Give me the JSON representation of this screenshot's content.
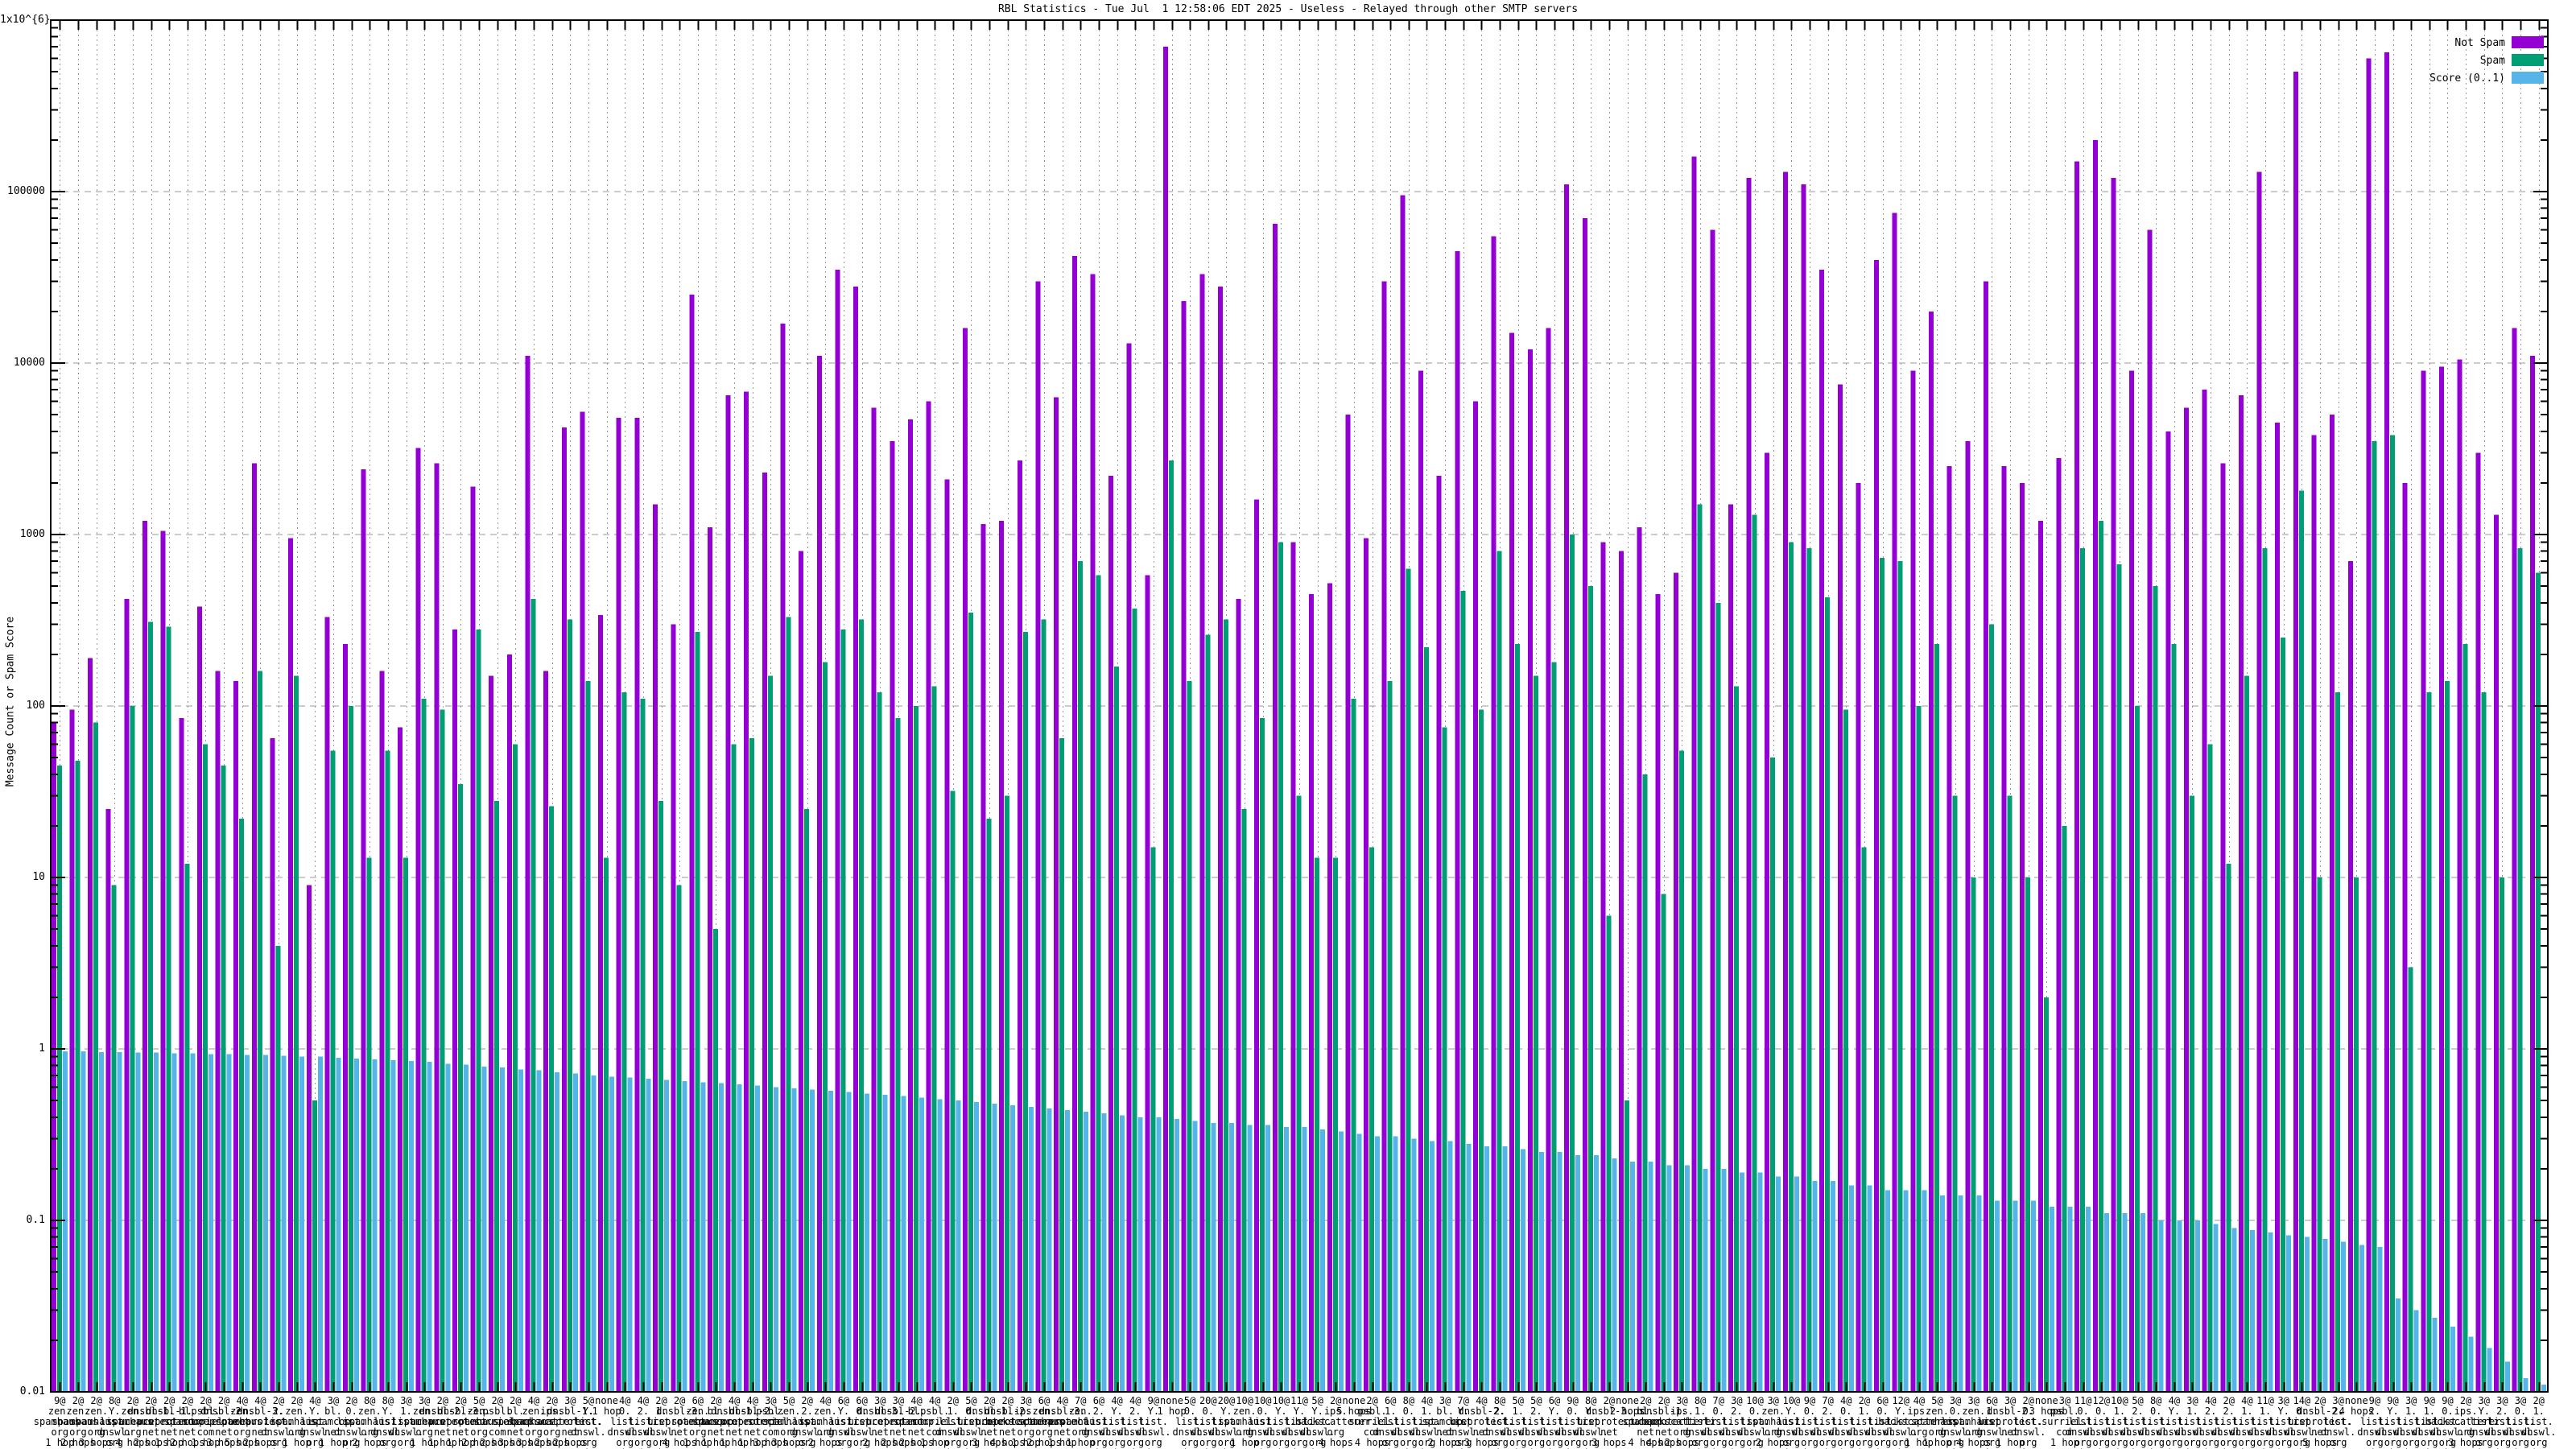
{
  "title": "RBL Statistics - Tue Jul  1 12:58:06 EDT 2025 - Useless - Relayed through other SMTP servers",
  "y_axis": {
    "label": "Message Count or Spam Score",
    "ticks": [
      {
        "text": "1x10^{6}",
        "value": 1000000
      },
      {
        "text": "100000",
        "value": 100000
      },
      {
        "text": "10000",
        "value": 10000
      },
      {
        "text": "1000",
        "value": 1000
      },
      {
        "text": "100",
        "value": 100
      },
      {
        "text": "10",
        "value": 10
      },
      {
        "text": "1",
        "value": 1
      },
      {
        "text": "0.1",
        "value": 0.1
      },
      {
        "text": "0.01",
        "value": 0.01
      }
    ]
  },
  "legend": [
    {
      "label": "Not Spam",
      "color": "#9400d3"
    },
    {
      "label": "Spam",
      "color": "#009e73"
    },
    {
      "label": "Score (0..1)",
      "color": "#56b4e9"
    }
  ],
  "colors": {
    "not_spam": "#9400d3",
    "spam": "#009e73",
    "score": "#56b4e9",
    "grid": "#9a9a9a",
    "border": "#000000"
  },
  "chart_data": {
    "type": "bar",
    "title": "RBL Statistics - Tue Jul  1 12:58:06 EDT 2025 - Useless - Relayed through other SMTP servers",
    "ylabel": "Message Count or Spam Score",
    "log_scale": true,
    "ylim": [
      0.01,
      1000000
    ],
    "grid": true,
    "legend_position": "top-right",
    "series_names": [
      "Not Spam",
      "Spam",
      "Score (0..1)"
    ],
    "hosts": {
      "H1": [
        "zen.",
        "spamhaus.",
        "org"
      ],
      "H2": [
        "Y.",
        "list.",
        "dnswl.",
        "org"
      ],
      "H3": [
        "dnsbl-1.",
        "uceprotect.",
        "net"
      ],
      "H4": [
        "dnsbl-2.",
        "uceprotect.",
        "net"
      ],
      "H5": [
        "dnsbl-3.",
        "uceprotect.",
        "net"
      ],
      "H6": [
        "bl.",
        "spamcop.",
        "net"
      ],
      "H7": [
        "psbl.",
        "surriel.",
        "com"
      ],
      "H8": [
        "0.",
        "list.",
        "dnswl.",
        "org"
      ],
      "H9": [
        "1.",
        "list.",
        "dnswl.",
        "org"
      ],
      "H10": [
        "2.",
        "list.",
        "dnswl.",
        "org"
      ],
      "H11": [
        "ips.",
        "backscatterer.",
        "org"
      ],
      "NONE": []
    },
    "groups": [
      [
        "9@",
        "H1",
        "1 hop",
        80,
        45,
        0.97
      ],
      [
        "2@",
        "H1",
        "2 hops",
        95,
        48,
        0.97
      ],
      [
        "2@",
        "H1",
        "3 hops",
        190,
        80,
        0.96
      ],
      [
        "8@",
        "H2",
        "2 hops",
        25,
        9,
        0.96
      ],
      [
        "2@",
        "H1",
        "4 hops",
        420,
        100,
        0.95
      ],
      [
        "2@",
        "H3",
        "2 hops",
        1200,
        310,
        0.95
      ],
      [
        "2@",
        "H3",
        "1 hop",
        1050,
        290,
        0.94
      ],
      [
        "2@",
        "H6",
        "2 hops",
        85,
        12,
        0.94
      ],
      [
        "2@",
        "H7",
        "1 hop",
        380,
        60,
        0.93
      ],
      [
        "2@",
        "H4",
        "3 hops",
        160,
        45,
        0.93
      ],
      [
        "4@",
        "H1",
        "5 hops",
        140,
        22,
        0.92
      ],
      [
        "4@",
        "H5",
        "2 hops",
        2600,
        160,
        0.92
      ],
      [
        "2@",
        "H10",
        "5 hops",
        65,
        4,
        0.91
      ],
      [
        "2@",
        "H1",
        "1 hop",
        950,
        150,
        0.9
      ],
      [
        "4@",
        "H2",
        "3 hops",
        9,
        0.5,
        0.9
      ],
      [
        "3@",
        "H6",
        "1 hop",
        330,
        55,
        0.89
      ],
      [
        "2@",
        "H8",
        "2 hops",
        230,
        100,
        0.88
      ],
      [
        "8@",
        "H1",
        "2 hops",
        2400,
        13,
        0.87
      ],
      [
        "8@",
        "H2",
        "1 hop",
        160,
        55,
        0.86
      ],
      [
        "3@",
        "H9",
        "2 hops",
        75,
        13,
        0.85
      ],
      [
        "3@",
        "H1",
        "1 hop",
        3200,
        110,
        0.84
      ],
      [
        "2@",
        "H4",
        "1 hop",
        2600,
        95,
        0.82
      ],
      [
        "2@",
        "H5",
        "1 hop",
        280,
        35,
        0.81
      ],
      [
        "5@",
        "H1",
        "2 hops",
        1900,
        280,
        0.79
      ],
      [
        "2@",
        "H7",
        "2 hops",
        150,
        28,
        0.78
      ],
      [
        "2@",
        "H6",
        "3 hops",
        200,
        60,
        0.76
      ],
      [
        "4@",
        "H1",
        "3 hops",
        11000,
        420,
        0.75
      ],
      [
        "2@",
        "H11",
        "2 hops",
        160,
        26,
        0.73
      ],
      [
        "3@",
        "H3",
        "2 hops",
        4200,
        320,
        0.72
      ],
      [
        "5@",
        "H2",
        "1 hop",
        5200,
        140,
        0.7
      ],
      [
        "none",
        "NONE",
        "1 hop",
        340,
        13,
        0.69
      ],
      [
        "4@",
        "H8",
        "1 hop",
        4800,
        120,
        0.68
      ],
      [
        "4@",
        "H10",
        "1 hop",
        4800,
        110,
        0.67
      ],
      [
        "2@",
        "H9",
        "1 hop",
        1500,
        28,
        0.66
      ],
      [
        "2@",
        "H5",
        "4 hops",
        300,
        9,
        0.65
      ],
      [
        "6@",
        "H1",
        "1 hop",
        25000,
        270,
        0.64
      ],
      [
        "2@",
        "H6",
        "1 hop",
        1100,
        5,
        0.63
      ],
      [
        "4@",
        "H3",
        "1 hop",
        6500,
        60,
        0.62
      ],
      [
        "4@",
        "H4",
        "1 hop",
        6800,
        65,
        0.61
      ],
      [
        "3@",
        "H7",
        "3 hops",
        2300,
        150,
        0.6
      ],
      [
        "5@",
        "H1",
        "3 hops",
        17000,
        330,
        0.59
      ],
      [
        "2@",
        "H10",
        "2 hops",
        800,
        25,
        0.58
      ],
      [
        "4@",
        "H1",
        "2 hops",
        11000,
        180,
        0.57
      ],
      [
        "6@",
        "H2",
        "1 hop",
        35000,
        280,
        0.56
      ],
      [
        "6@",
        "H8",
        "1 hop",
        28000,
        320,
        0.55
      ],
      [
        "3@",
        "H5",
        "2 hops",
        5500,
        120,
        0.54
      ],
      [
        "3@",
        "H4",
        "2 hops",
        3500,
        85,
        0.53
      ],
      [
        "4@",
        "H6",
        "2 hops",
        4700,
        100,
        0.52
      ],
      [
        "4@",
        "H7",
        "1 hop",
        6000,
        130,
        0.51
      ],
      [
        "2@",
        "H9",
        "3 hops",
        2100,
        32,
        0.5
      ],
      [
        "5@",
        "H8",
        "2 hops",
        16000,
        350,
        0.49
      ],
      [
        "2@",
        "H3",
        "3 hops",
        1150,
        22,
        0.48
      ],
      [
        "2@",
        "H4",
        "4 hops",
        1200,
        30,
        0.47
      ],
      [
        "3@",
        "H11",
        "1 hop",
        2700,
        270,
        0.46
      ],
      [
        "6@",
        "H1",
        "2 hops",
        30000,
        320,
        0.45
      ],
      [
        "4@",
        "H5",
        "1 hop",
        6300,
        65,
        0.44
      ],
      [
        "7@",
        "H1",
        "1 hop",
        42000,
        700,
        0.43
      ],
      [
        "6@",
        "H10",
        "1 hop",
        33000,
        580,
        0.42
      ],
      [
        "4@",
        "H2",
        "1 hop",
        2200,
        170,
        0.41
      ],
      [
        "4@",
        "H10",
        "1 hop",
        13000,
        370,
        0.4
      ],
      [
        "9@",
        "H2",
        "4 hops",
        580,
        15,
        0.4
      ],
      [
        "none",
        "NONE",
        "1 hop",
        700000,
        2700,
        0.39
      ],
      [
        "5@",
        "H8",
        "4 hops",
        23000,
        140,
        0.38
      ],
      [
        "20@",
        "H8",
        "1 hop",
        33000,
        260,
        0.37
      ],
      [
        "20@",
        "H2",
        "1 hop",
        28000,
        320,
        0.37
      ],
      [
        "10@",
        "H1",
        "1 hop",
        420,
        25,
        0.36
      ],
      [
        "10@",
        "H8",
        "1 hop",
        1600,
        85,
        0.36
      ],
      [
        "10@",
        "H2",
        "1 hop",
        65000,
        900,
        0.35
      ],
      [
        "11@",
        "H2",
        "2 hops",
        900,
        30,
        0.35
      ],
      [
        "5@",
        "H2",
        "5 hops",
        450,
        13,
        0.34
      ],
      [
        "2@",
        "H11",
        "4 hops",
        520,
        13,
        0.33
      ],
      [
        "none",
        "NONE",
        "5 hops",
        5000,
        110,
        0.32
      ],
      [
        "2@",
        "H7",
        "4 hops",
        950,
        15,
        0.31
      ],
      [
        "6@",
        "H9",
        "1 hop",
        30000,
        140,
        0.31
      ],
      [
        "8@",
        "H8",
        "1 hop",
        95000,
        630,
        0.3
      ],
      [
        "4@",
        "H9",
        "2 hops",
        9000,
        220,
        0.29
      ],
      [
        "3@",
        "H6",
        "2 hops",
        2200,
        75,
        0.29
      ],
      [
        "7@",
        "H2",
        "1 hop",
        45000,
        470,
        0.28
      ],
      [
        "4@",
        "H4",
        "3 hops",
        6000,
        95,
        0.27
      ],
      [
        "8@",
        "H10",
        "1 hop",
        55000,
        800,
        0.27
      ],
      [
        "5@",
        "H9",
        "1 hop",
        15000,
        230,
        0.26
      ],
      [
        "5@",
        "H10",
        "2 hops",
        12000,
        150,
        0.25
      ],
      [
        "6@",
        "H2",
        "2 hops",
        16000,
        180,
        0.25
      ],
      [
        "9@",
        "H8",
        "2 hops",
        110000,
        1000,
        0.24
      ],
      [
        "8@",
        "H2",
        "3 hops",
        70000,
        500,
        0.24
      ],
      [
        "2@",
        "H5",
        "3 hops",
        900,
        6,
        0.23
      ],
      [
        "none",
        "NONE",
        "2 hops",
        800,
        0.5,
        0.22
      ],
      [
        "2@",
        "H6",
        "4 hops",
        1100,
        40,
        0.22
      ],
      [
        "2@",
        "H3",
        "4 hops",
        450,
        8,
        0.21
      ],
      [
        "3@",
        "H11",
        "2 hops",
        600,
        55,
        0.21
      ],
      [
        "8@",
        "H9",
        "1 hop",
        160000,
        1500,
        0.2
      ],
      [
        "7@",
        "H8",
        "3 hops",
        60000,
        400,
        0.2
      ],
      [
        "3@",
        "H10",
        "3 hops",
        1500,
        130,
        0.19
      ],
      [
        "10@",
        "H8",
        "4 hops",
        120000,
        1300,
        0.19
      ],
      [
        "3@",
        "H1",
        "2 hops",
        3000,
        50,
        0.18
      ],
      [
        "10@",
        "H2",
        "4 hops",
        130000,
        900,
        0.18
      ],
      [
        "9@",
        "H8",
        "3 hops",
        110000,
        830,
        0.17
      ],
      [
        "7@",
        "H10",
        "1 hop",
        35000,
        430,
        0.17
      ],
      [
        "4@",
        "H8",
        "5 hops",
        7500,
        95,
        0.16
      ],
      [
        "2@",
        "H9",
        "4 hops",
        2000,
        15,
        0.16
      ],
      [
        "6@",
        "H8",
        "2 hops",
        40000,
        730,
        0.15
      ],
      [
        "12@",
        "H2",
        "1 hop",
        75000,
        700,
        0.15
      ],
      [
        "4@",
        "H11",
        "1 hop",
        9000,
        100,
        0.15
      ],
      [
        "5@",
        "H1",
        "1 hop",
        20000,
        230,
        0.14
      ],
      [
        "3@",
        "H8",
        "1 hop",
        2500,
        30,
        0.14
      ],
      [
        "3@",
        "H1",
        "4 hops",
        3500,
        10,
        0.14
      ],
      [
        "6@",
        "H9",
        "2 hops",
        30000,
        300,
        0.13
      ],
      [
        "3@",
        "H4",
        "1 hop",
        2500,
        30,
        0.13
      ],
      [
        "2@",
        "H8",
        "6 hops",
        2000,
        10,
        0.13
      ],
      [
        "none",
        "NONE",
        "3 hops",
        1200,
        2,
        0.12
      ],
      [
        "3@",
        "H7",
        "1 hop",
        2800,
        20,
        0.12
      ],
      [
        "11@",
        "H8",
        "1 hop",
        150000,
        830,
        0.12
      ],
      [
        "12@",
        "H8",
        "1 hop",
        200000,
        1200,
        0.11
      ],
      [
        "10@",
        "H9",
        "1 hop",
        120000,
        670,
        0.11
      ],
      [
        "5@",
        "H10",
        "3 hops",
        9000,
        100,
        0.11
      ],
      [
        "8@",
        "H8",
        "4 hops",
        60000,
        500,
        0.1
      ],
      [
        "4@",
        "H2",
        "4 hops",
        4000,
        230,
        0.1
      ],
      [
        "3@",
        "H9",
        "3 hops",
        5500,
        30,
        0.1
      ],
      [
        "4@",
        "H10",
        "2 hops",
        7000,
        60,
        0.095
      ],
      [
        "2@",
        "H10",
        "6 hops",
        2600,
        12,
        0.09
      ],
      [
        "4@",
        "H9",
        "4 hops",
        6500,
        150,
        0.088
      ],
      [
        "11@",
        "H9",
        "1 hop",
        130000,
        830,
        0.085
      ],
      [
        "3@",
        "H2",
        "5 hops",
        4500,
        250,
        0.082
      ],
      [
        "14@",
        "H8",
        "1 hop",
        500000,
        1800,
        0.08
      ],
      [
        "2@",
        "H4",
        "5 hops",
        3800,
        10,
        0.078
      ],
      [
        "3@",
        "H10",
        "4 hops",
        5000,
        120,
        0.075
      ],
      [
        "none",
        "NONE",
        "4 hops",
        700,
        10,
        0.072
      ],
      [
        "9@",
        "H10",
        "1 hop",
        600000,
        3500,
        0.07
      ],
      [
        "9@",
        "H2",
        "1 hop",
        650000,
        3800,
        0.035
      ],
      [
        "3@",
        "H9",
        "2 hops",
        2000,
        3,
        0.03
      ],
      [
        "9@",
        "H9",
        "1 hop",
        9000,
        120,
        0.027
      ],
      [
        "9@",
        "H8",
        "1 hop",
        9500,
        140,
        0.024
      ],
      [
        "2@",
        "H11",
        "3 hops",
        10500,
        230,
        0.021
      ],
      [
        "3@",
        "H2",
        "4 hops",
        3000,
        120,
        0.018
      ],
      [
        "3@",
        "H10",
        "2 hops",
        1300,
        10,
        0.015
      ],
      [
        "3@",
        "H8",
        "4 hops",
        16000,
        830,
        0.012
      ],
      [
        "2@",
        "H9",
        "5 hops",
        11000,
        600,
        0.01
      ]
    ]
  }
}
